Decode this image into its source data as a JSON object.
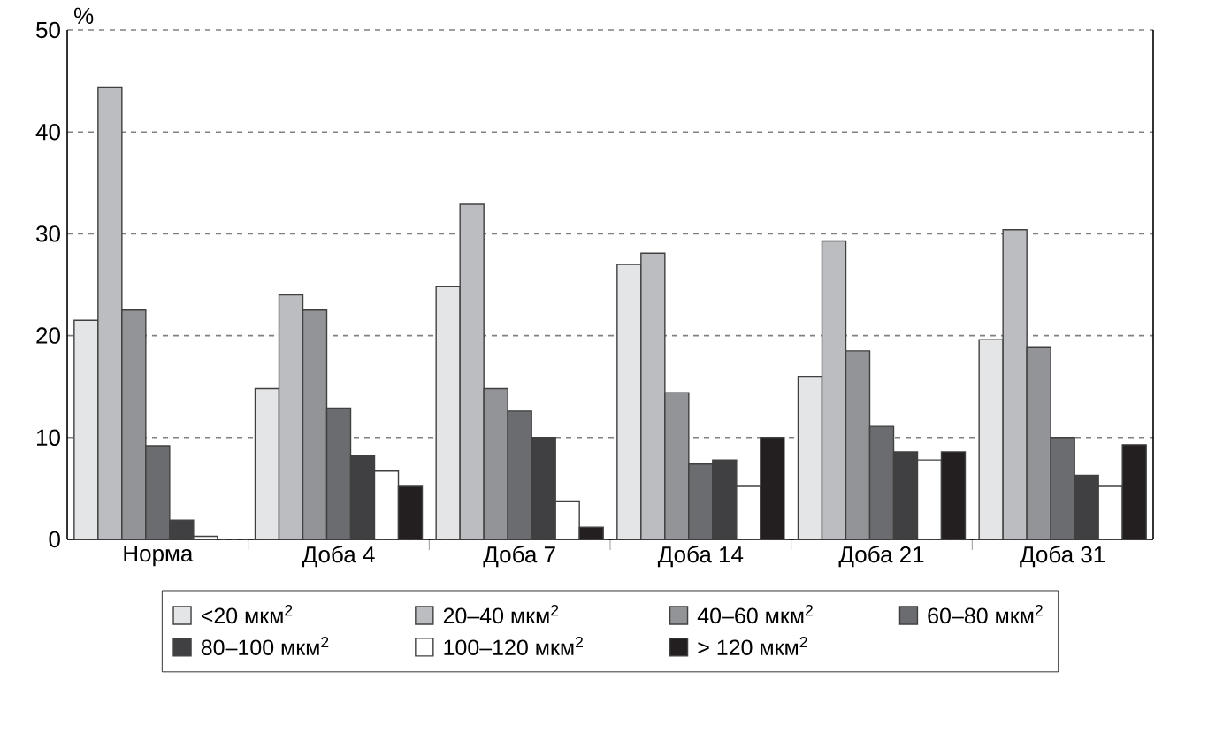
{
  "chart_data": {
    "type": "bar",
    "ylabel": "%",
    "categories": [
      "Норма",
      "Доба 4",
      "Доба 7",
      "Доба 14",
      "Доба 21",
      "Доба 31"
    ],
    "series": [
      {
        "name": "<20 мкм$^{2}$",
        "color": "#e4e5e7",
        "values": [
          21.5,
          14.8,
          24.8,
          27.0,
          16.0,
          19.6
        ]
      },
      {
        "name": "20–40 мкм$^{2}$",
        "color": "#bcbdc1",
        "values": [
          44.4,
          24.0,
          32.9,
          28.1,
          29.3,
          30.4
        ]
      },
      {
        "name": "40–60 мкм$^{2}$",
        "color": "#939497",
        "values": [
          22.5,
          22.5,
          14.8,
          14.4,
          18.5,
          18.9
        ]
      },
      {
        "name": "60–80 мкм$^{2}$",
        "color": "#6b6c70",
        "values": [
          9.2,
          12.9,
          12.6,
          7.4,
          11.1,
          10.0
        ]
      },
      {
        "name": "80–100 мкм$^{2}$",
        "color": "#404042",
        "values": [
          1.9,
          8.2,
          10.0,
          7.8,
          8.6,
          6.3
        ]
      },
      {
        "name": "100–120 мкм$^{2}$",
        "color": "#ffffff",
        "values": [
          0.3,
          6.7,
          3.7,
          5.2,
          7.8,
          5.2
        ]
      },
      {
        "name": "> 120 мкм$^{2}$",
        "color": "#231f20",
        "values": [
          null,
          5.2,
          1.2,
          10.0,
          8.6,
          9.3
        ]
      }
    ],
    "ylim": [
      0,
      50
    ],
    "yticks": [
      0,
      10,
      20,
      30,
      40,
      50
    ],
    "grid": "y",
    "legend": "bottom"
  }
}
